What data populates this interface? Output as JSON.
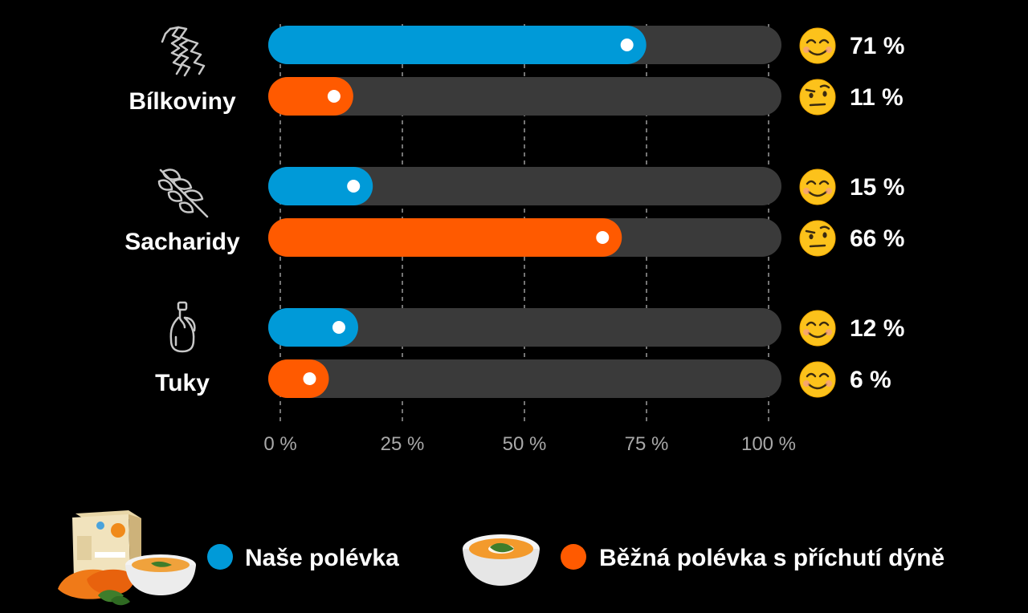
{
  "chart_data": {
    "type": "bar",
    "orientation": "horizontal",
    "xlim": [
      0,
      100
    ],
    "x_ticks": [
      0,
      25,
      50,
      75,
      100
    ],
    "x_tick_labels": [
      "0 %",
      "25 %",
      "50 %",
      "75 %",
      "100 %"
    ],
    "grid": "vertical dashed",
    "categories": [
      "Bílkoviny",
      "Sacharidy",
      "Tuky"
    ],
    "series": [
      {
        "name": "Naše polévka",
        "color": "#009ad8",
        "values": [
          71,
          15,
          12
        ],
        "value_labels": [
          "71 %",
          "15 %",
          "12 %"
        ],
        "emojis": [
          "smiling-face-icon",
          "smiling-face-icon",
          "smiling-face-icon"
        ]
      },
      {
        "name": "Běžná polévka s příchutí dýně",
        "color": "#ff5a00",
        "values": [
          11,
          66,
          6
        ],
        "value_labels": [
          "11 %",
          "66 %",
          "6 %"
        ],
        "emojis": [
          "raised-eyebrow-face-icon",
          "raised-eyebrow-face-icon",
          "smiling-face-icon"
        ]
      }
    ],
    "category_icons": [
      "pasta-icon",
      "wheat-icon",
      "oil-bottle-icon"
    ],
    "legend": {
      "placement": "bottom",
      "items": [
        {
          "label": "Naše polévka",
          "color": "#009ad8",
          "image": "soup-box-and-bowl-image"
        },
        {
          "label": "Běžná polévka s příchutí dýně",
          "color": "#ff5a00",
          "image": "pumpkin-soup-bowl-image"
        }
      ]
    }
  },
  "colors": {
    "background": "#000000",
    "track": "#3a3a3a",
    "grid": "#9a9a9a",
    "tick_text": "#a9a9a9",
    "text": "#ffffff"
  }
}
